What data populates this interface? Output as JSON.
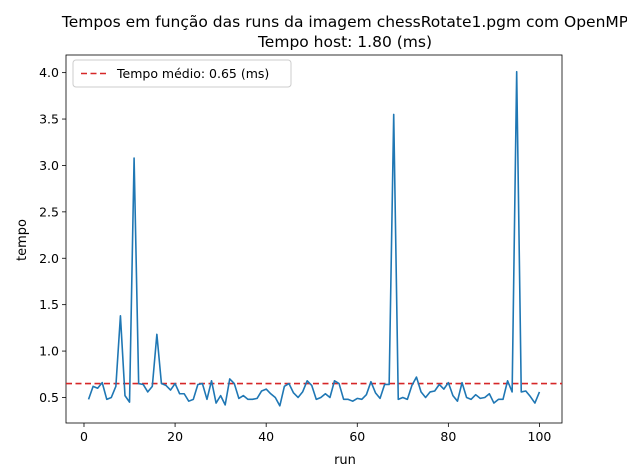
{
  "chart_data": {
    "type": "line",
    "title": "Tempos em função das runs da imagem chessRotate1.pgm com OpenMP",
    "subtitle": "Tempo host: 1.80 (ms)",
    "xlabel": "run",
    "ylabel": "tempo",
    "xlim": [
      -3.95,
      104.95
    ],
    "ylim": [
      0.225,
      4.19
    ],
    "xticks": [
      0,
      20,
      40,
      60,
      80,
      100
    ],
    "yticks": [
      0.5,
      1.0,
      1.5,
      2.0,
      2.5,
      3.0,
      3.5,
      4.0
    ],
    "xtick_labels": [
      "0",
      "20",
      "40",
      "60",
      "80",
      "100"
    ],
    "ytick_labels": [
      "0.5",
      "1.0",
      "1.5",
      "2.0",
      "2.5",
      "3.0",
      "3.5",
      "4.0"
    ],
    "grid": false,
    "legend_position": "top-left",
    "series": [
      {
        "color": "#1f77b4",
        "x": [
          1,
          2,
          3,
          4,
          5,
          6,
          7,
          8,
          9,
          10,
          11,
          12,
          13,
          14,
          15,
          16,
          17,
          18,
          19,
          20,
          21,
          22,
          23,
          24,
          25,
          26,
          27,
          28,
          29,
          30,
          31,
          32,
          33,
          34,
          35,
          36,
          37,
          38,
          39,
          40,
          41,
          42,
          43,
          44,
          45,
          46,
          47,
          48,
          49,
          50,
          51,
          52,
          53,
          54,
          55,
          56,
          57,
          58,
          59,
          60,
          61,
          62,
          63,
          64,
          65,
          66,
          67,
          68,
          69,
          70,
          71,
          72,
          73,
          74,
          75,
          76,
          77,
          78,
          79,
          80,
          81,
          82,
          83,
          84,
          85,
          86,
          87,
          88,
          89,
          90,
          91,
          92,
          93,
          94,
          95,
          96,
          97,
          98,
          99,
          100
        ],
        "values": [
          0.48,
          0.62,
          0.6,
          0.66,
          0.48,
          0.5,
          0.62,
          1.38,
          0.52,
          0.45,
          3.08,
          0.65,
          0.64,
          0.56,
          0.62,
          1.18,
          0.65,
          0.63,
          0.58,
          0.65,
          0.54,
          0.54,
          0.46,
          0.48,
          0.64,
          0.65,
          0.48,
          0.68,
          0.44,
          0.52,
          0.42,
          0.7,
          0.65,
          0.49,
          0.52,
          0.48,
          0.48,
          0.49,
          0.57,
          0.59,
          0.54,
          0.5,
          0.41,
          0.62,
          0.65,
          0.55,
          0.5,
          0.56,
          0.68,
          0.63,
          0.48,
          0.5,
          0.54,
          0.5,
          0.68,
          0.65,
          0.48,
          0.48,
          0.46,
          0.49,
          0.48,
          0.53,
          0.67,
          0.55,
          0.49,
          0.64,
          0.64,
          3.55,
          0.48,
          0.5,
          0.48,
          0.63,
          0.72,
          0.56,
          0.5,
          0.56,
          0.57,
          0.64,
          0.59,
          0.66,
          0.52,
          0.46,
          0.66,
          0.5,
          0.48,
          0.53,
          0.49,
          0.5,
          0.54,
          0.44,
          0.48,
          0.48,
          0.68,
          0.56,
          4.01,
          0.56,
          0.57,
          0.51,
          0.44,
          0.56
        ]
      }
    ],
    "reference_line": {
      "value": 0.65,
      "label": "Tempo médio: 0.65 (ms)",
      "color": "#d62728",
      "style": "dashed"
    }
  }
}
